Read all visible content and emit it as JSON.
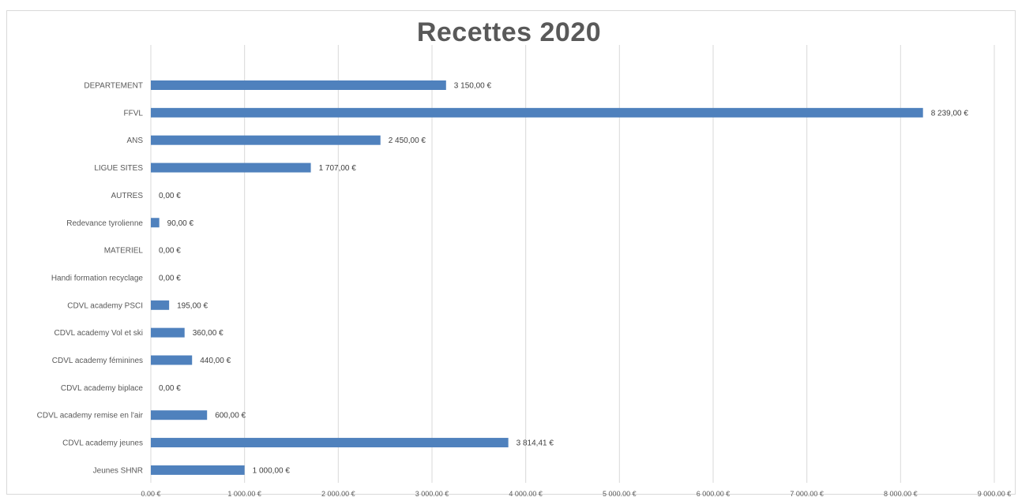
{
  "chart_data": {
    "type": "bar",
    "orientation": "horizontal",
    "title": "Recettes 2020",
    "categories": [
      "DEPARTEMENT",
      "FFVL",
      "ANS",
      "LIGUE SITES",
      "AUTRES",
      "Redevance tyrolienne",
      "MATERIEL",
      "Handi formation recyclage",
      "CDVL academy PSCI",
      "CDVL academy Vol et ski",
      "CDVL academy féminines",
      "CDVL academy biplace",
      "CDVL academy remise en l'air",
      "CDVL academy jeunes",
      "Jeunes SHNR"
    ],
    "values": [
      3150,
      8239,
      2450,
      1707,
      0,
      90,
      0,
      0,
      195,
      360,
      440,
      0,
      600,
      3814.41,
      1000
    ],
    "value_labels": [
      "3 150,00 €",
      "8 239,00 €",
      "2 450,00 €",
      "1 707,00 €",
      "0,00 €",
      "90,00 €",
      "0,00 €",
      "0,00 €",
      "195,00 €",
      "360,00 €",
      "440,00 €",
      "0,00 €",
      "600,00 €",
      "3 814,41 €",
      "1 000,00 €"
    ],
    "x_ticks": [
      0,
      1000,
      2000,
      3000,
      4000,
      5000,
      6000,
      7000,
      8000,
      9000
    ],
    "x_tick_labels": [
      "0.00 €",
      "1 000.00 €",
      "2 000.00 €",
      "3 000.00 €",
      "4 000.00 €",
      "5 000.00 €",
      "6 000.00 €",
      "7 000.00 €",
      "8 000.00 €",
      "9 000.00 €"
    ],
    "xlim": [
      0,
      9000
    ],
    "grid": true,
    "legend": false,
    "bar_color": "#4f81bd",
    "grid_color": "#d9d9d9"
  }
}
